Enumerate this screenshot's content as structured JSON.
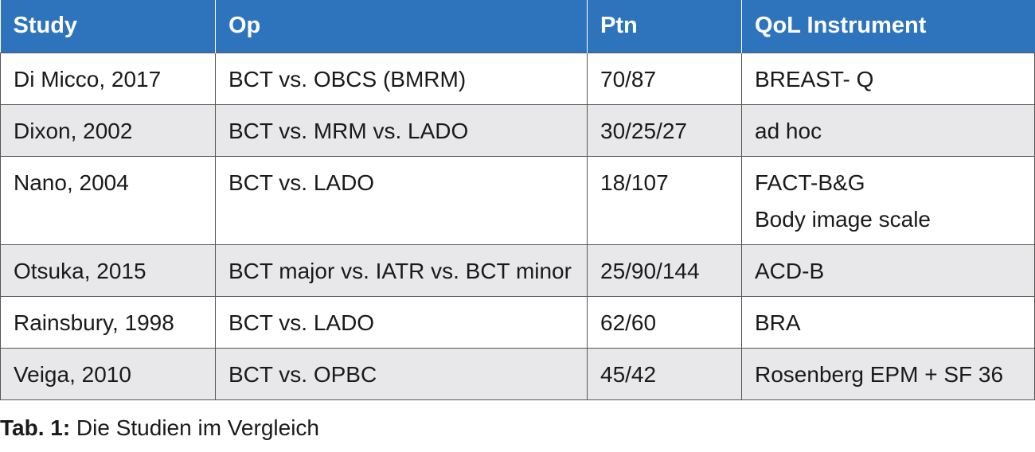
{
  "table": {
    "headers": [
      "Study",
      "Op",
      "Ptn",
      "QoL Instrument"
    ],
    "rows": [
      {
        "study": "Di Micco, 2017",
        "op": "BCT vs. OBCS (BMRM)",
        "ptn": "70/87",
        "qol": [
          "BREAST- Q"
        ]
      },
      {
        "study": "Dixon, 2002",
        "op": "BCT vs. MRM vs. LADO",
        "ptn": "30/25/27",
        "qol": [
          "ad hoc"
        ]
      },
      {
        "study": "Nano, 2004",
        "op": "BCT vs. LADO",
        "ptn": "18/107",
        "qol": [
          "FACT-B&G",
          "Body image scale"
        ]
      },
      {
        "study": "Otsuka, 2015",
        "op": "BCT major vs. IATR vs. BCT minor",
        "ptn": "25/90/144",
        "qol": [
          "ACD-B"
        ]
      },
      {
        "study": "Rainsbury, 1998",
        "op": "BCT vs. LADO",
        "ptn": "62/60",
        "qol": [
          "BRA"
        ]
      },
      {
        "study": "Veiga, 2010",
        "op": "BCT vs. OPBC",
        "ptn": "45/42",
        "qol": [
          "Rosenberg EPM + SF 36"
        ]
      }
    ]
  },
  "caption": {
    "label": "Tab. 1:",
    "text": " Die Studien im Vergleich"
  },
  "colors": {
    "header_bg": "#2e74bd",
    "header_text": "#ffffff",
    "stripe_bg": "#e8e8ea",
    "border": "#555555"
  }
}
